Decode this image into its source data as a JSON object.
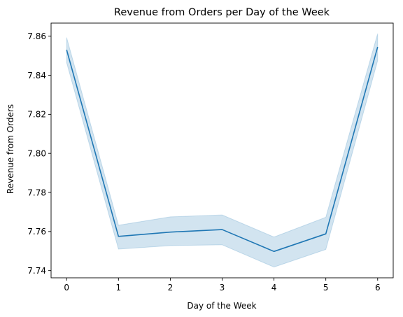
{
  "chart_data": {
    "type": "line",
    "title": "Revenue from Orders per Day of the Week",
    "xlabel": "Day of the Week",
    "ylabel": "Revenue from Orders",
    "xlim": [
      -0.3,
      6.3
    ],
    "ylim": [
      7.7363,
      7.8667
    ],
    "xticks": [
      0,
      1,
      2,
      3,
      4,
      5,
      6
    ],
    "yticks": [
      7.74,
      7.76,
      7.78,
      7.8,
      7.82,
      7.84,
      7.86
    ],
    "ytick_labels": [
      "7.74",
      "7.76",
      "7.78",
      "7.80",
      "7.82",
      "7.84",
      "7.86"
    ],
    "grid": false,
    "legend": "none",
    "series": [
      {
        "x": [
          0,
          1,
          2,
          3,
          4,
          5,
          6
        ],
        "values": [
          7.853,
          7.7575,
          7.7597,
          7.761,
          7.7498,
          7.7588,
          7.8545
        ],
        "ci_lower": [
          7.8465,
          7.751,
          7.7528,
          7.7532,
          7.7418,
          7.7508,
          7.8475
        ],
        "ci_upper": [
          7.8593,
          7.7632,
          7.7675,
          7.7685,
          7.7572,
          7.7673,
          7.8613
        ],
        "color": "#1f77b4",
        "band_color": "#1f77b4"
      }
    ]
  }
}
